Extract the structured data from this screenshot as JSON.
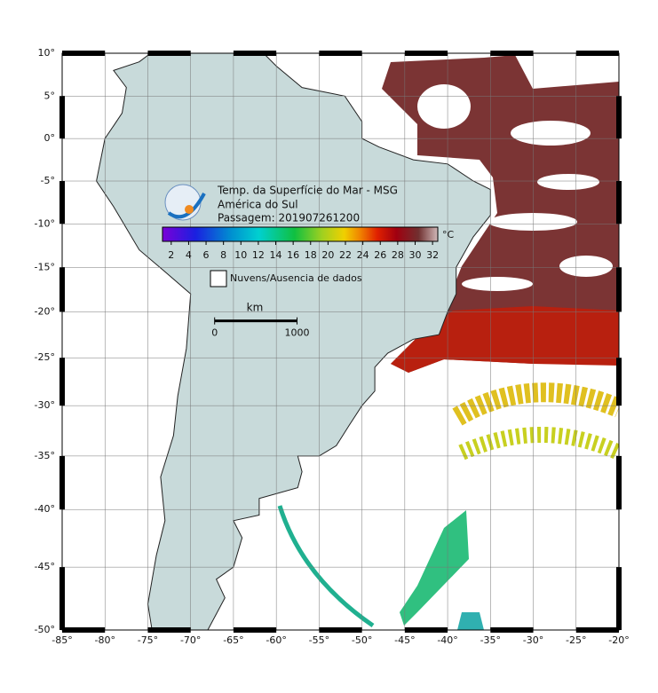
{
  "map": {
    "title_lines": [
      "Temp. da Superfície do Mar - MSG",
      "América do Sul",
      "Passagem: 201907261200"
    ],
    "xlim": [
      -85,
      -20
    ],
    "ylim": [
      -50,
      10
    ],
    "grid": true,
    "xticks": [
      {
        "value": -85,
        "label": "-85°"
      },
      {
        "value": -80,
        "label": "-80°"
      },
      {
        "value": -75,
        "label": "-75°"
      },
      {
        "value": -70,
        "label": "-70°"
      },
      {
        "value": -65,
        "label": "-65°"
      },
      {
        "value": -60,
        "label": "-60°"
      },
      {
        "value": -55,
        "label": "-55°"
      },
      {
        "value": -50,
        "label": "-50°"
      },
      {
        "value": -45,
        "label": "-45°"
      },
      {
        "value": -40,
        "label": "-40°"
      },
      {
        "value": -35,
        "label": "-35°"
      },
      {
        "value": -30,
        "label": "-30°"
      },
      {
        "value": -25,
        "label": "-25°"
      },
      {
        "value": -20,
        "label": "-20°"
      }
    ],
    "yticks": [
      {
        "value": 10,
        "label": "10°"
      },
      {
        "value": 5,
        "label": "5°"
      },
      {
        "value": 0,
        "label": "0°"
      },
      {
        "value": -5,
        "label": "-5°"
      },
      {
        "value": -10,
        "label": "-10°"
      },
      {
        "value": -15,
        "label": "-15°"
      },
      {
        "value": -20,
        "label": "-20°"
      },
      {
        "value": -25,
        "label": "-25°"
      },
      {
        "value": -30,
        "label": "-30°"
      },
      {
        "value": -35,
        "label": "-35°"
      },
      {
        "value": -40,
        "label": "-40°"
      },
      {
        "value": -45,
        "label": "-45°"
      },
      {
        "value": -50,
        "label": "-50°"
      }
    ],
    "colorbar": {
      "unit": "°C",
      "clim": [
        1,
        32.6
      ],
      "ticks": [
        2,
        4,
        6,
        8,
        10,
        12,
        14,
        16,
        18,
        20,
        22,
        24,
        26,
        28,
        30,
        32
      ]
    },
    "legend": "Nuvens/Ausencia de dados",
    "scale_bar": {
      "unit": "km",
      "ticks": [
        0,
        1000
      ]
    }
  }
}
